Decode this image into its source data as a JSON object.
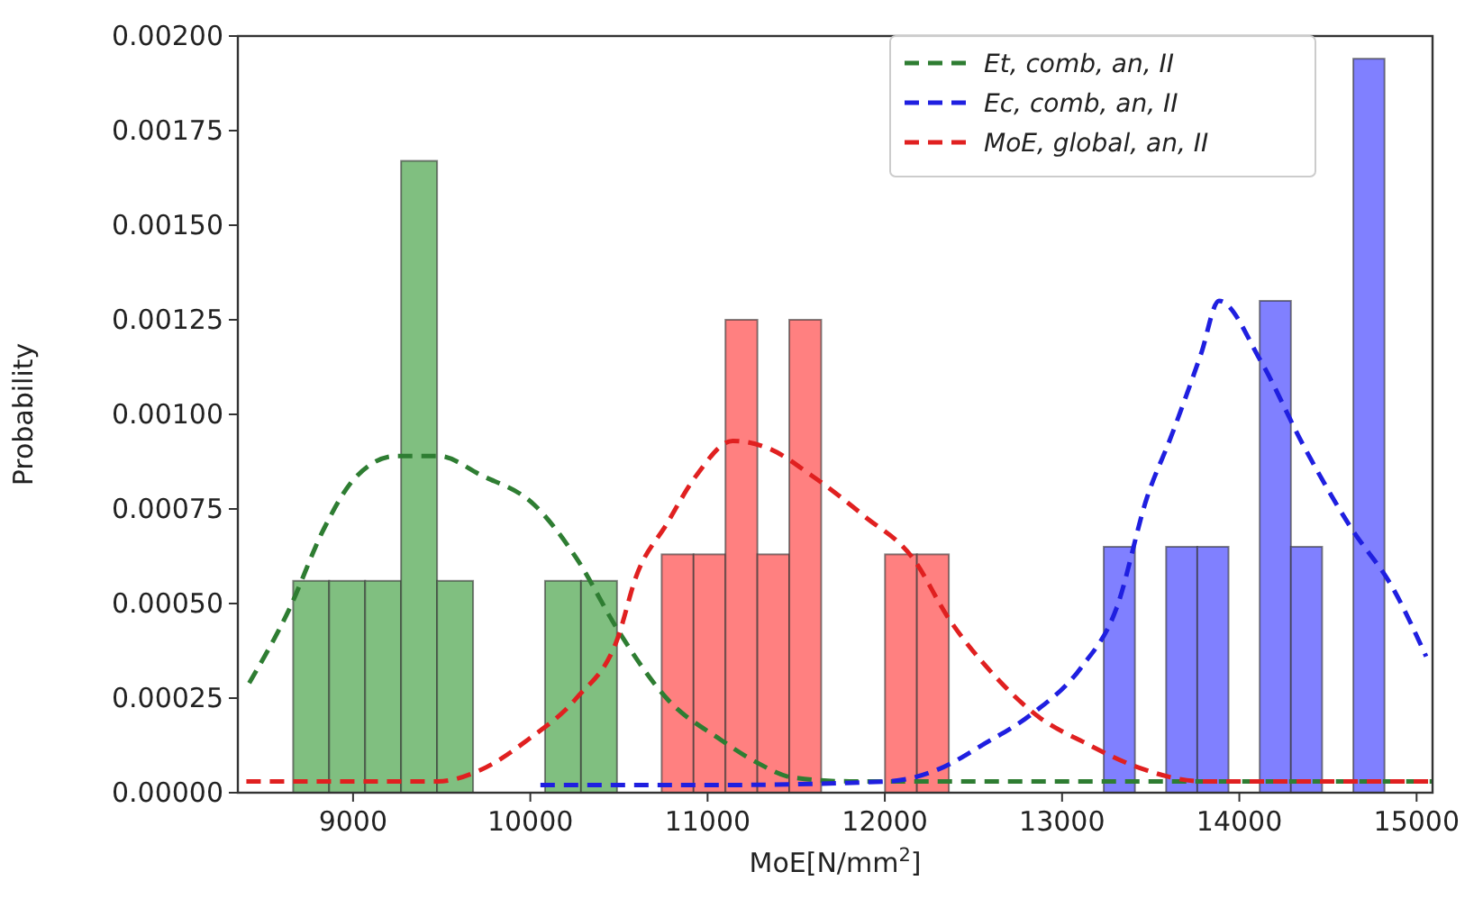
{
  "chart_data": {
    "type": "histogram",
    "xlabel": "MoE[N/mm$^{2}$]",
    "ylabel": "Probability",
    "xlim": [
      8350,
      15090
    ],
    "xticks": [
      9000,
      10000,
      11000,
      12000,
      13000,
      14000,
      15000
    ],
    "ylim": [
      0,
      0.002
    ],
    "yticks": [
      {
        "value": 0,
        "label": "0.00000"
      },
      {
        "value": 0.00025,
        "label": "0.00025"
      },
      {
        "value": 0.0005,
        "label": "0.00050"
      },
      {
        "value": 0.00075,
        "label": "0.00075"
      },
      {
        "value": 0.001,
        "label": "0.00100"
      },
      {
        "value": 0.00125,
        "label": "0.00125"
      },
      {
        "value": 0.0015,
        "label": "0.00150"
      },
      {
        "value": 0.00175,
        "label": "0.00175"
      },
      {
        "value": 0.002,
        "label": "0.00200"
      }
    ],
    "grid": false,
    "legend": "top right",
    "line_style": "dashed",
    "series": [
      {
        "color": "#80bf80",
        "bins": [
          8662,
          8865,
          9068,
          9271,
          9474,
          9677,
          9880,
          10083,
          10286,
          10489
        ],
        "values": [
          0.00056,
          0.00056,
          0.00056,
          0.00167,
          0.00056,
          0,
          0,
          0.00056,
          0.00056
        ]
      },
      {
        "color": "#ff8080",
        "bins": [
          10741,
          10921,
          11101,
          11281,
          11461,
          11641,
          11821,
          12001,
          12181,
          12361
        ],
        "values": [
          0.00063,
          0.00063,
          0.00125,
          0.00063,
          0.00125,
          0,
          0,
          0.00063,
          0.00063
        ]
      },
      {
        "color": "#8080ff",
        "bins": [
          13235,
          13411,
          13587,
          13763,
          13939,
          14115,
          14291,
          14467,
          14643,
          14819
        ],
        "values": [
          0.00065,
          0,
          0.00065,
          0.00065,
          0,
          0.0013,
          0.00065,
          0,
          0.00194
        ]
      },
      {
        "type": "line",
        "name": "Et, comb, an, II",
        "color": "#2e7d32",
        "x": [
          8414,
          8635,
          8838,
          9007,
          9244,
          9481,
          9719,
          10024,
          10260,
          10494,
          10768,
          11074,
          11277,
          11480,
          11800,
          12500,
          13500,
          14500,
          15090
        ],
        "values": [
          0.00029,
          0.00048,
          0.0007,
          0.00083,
          0.00089,
          0.00089,
          0.00084,
          0.00076,
          0.00062,
          0.00043,
          0.00025,
          0.00014,
          8e-05,
          4e-05,
          3e-05,
          3e-05,
          3e-05,
          3e-05,
          3e-05
        ]
      },
      {
        "type": "line",
        "name": "Ec, comb, an, II",
        "color": "#1f1fe0",
        "x": [
          10057,
          11000,
          12021,
          12293,
          12564,
          12835,
          13106,
          13309,
          13479,
          13614,
          13784,
          13885,
          14122,
          14359,
          14630,
          14867,
          15054
        ],
        "values": [
          2e-05,
          2e-05,
          3e-05,
          6e-05,
          0.00013,
          0.00021,
          0.00033,
          0.00049,
          0.00078,
          0.00094,
          0.00116,
          0.0013,
          0.00114,
          0.00092,
          0.0007,
          0.00054,
          0.00036
        ]
      },
      {
        "type": "line",
        "name": "MoE, global, an, II",
        "color": "#e02020",
        "x": [
          8398,
          9000,
          9478,
          9719,
          9986,
          10260,
          10494,
          10596,
          10769,
          10939,
          11142,
          11345,
          11582,
          11887,
          12158,
          12361,
          12598,
          12869,
          13137,
          13411,
          13800,
          14500,
          15090
        ],
        "values": [
          3e-05,
          3e-05,
          3e-05,
          6e-05,
          0.00014,
          0.00025,
          0.00041,
          0.00057,
          0.00071,
          0.00084,
          0.00093,
          0.00091,
          0.00084,
          0.00073,
          0.00062,
          0.00046,
          0.00032,
          0.0002,
          0.00013,
          7e-05,
          3e-05,
          3e-05,
          3e-05
        ]
      }
    ]
  }
}
